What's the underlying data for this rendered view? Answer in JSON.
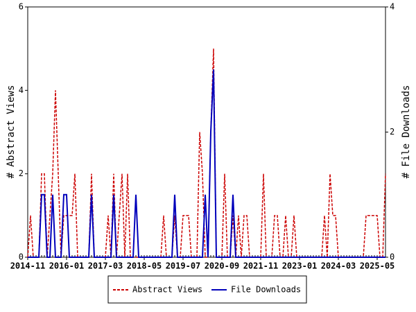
{
  "chart_data": {
    "type": "line",
    "ylabel": "# Abstract Views",
    "y2label": "# File Downloads",
    "x": [
      "2014-11",
      "2014-12",
      "2015-01",
      "2015-02",
      "2015-03",
      "2015-04",
      "2015-05",
      "2015-06",
      "2015-07",
      "2015-08",
      "2015-09",
      "2015-10",
      "2015-11",
      "2015-12",
      "2016-01",
      "2016-02",
      "2016-03",
      "2016-04",
      "2016-05",
      "2016-06",
      "2016-07",
      "2016-08",
      "2016-09",
      "2016-10",
      "2016-11",
      "2016-12",
      "2017-01",
      "2017-02",
      "2017-03",
      "2017-04",
      "2017-05",
      "2017-06",
      "2017-07",
      "2017-08",
      "2017-09",
      "2017-10",
      "2017-11",
      "2017-12",
      "2018-01",
      "2018-02",
      "2018-03",
      "2018-04",
      "2018-05",
      "2018-06",
      "2018-07",
      "2018-08",
      "2018-09",
      "2018-10",
      "2018-11",
      "2018-12",
      "2019-01",
      "2019-02",
      "2019-03",
      "2019-04",
      "2019-05",
      "2019-06",
      "2019-07",
      "2019-08",
      "2019-09",
      "2019-10",
      "2019-11",
      "2019-12",
      "2020-01",
      "2020-02",
      "2020-03",
      "2020-04",
      "2020-05",
      "2020-06",
      "2020-07",
      "2020-08",
      "2020-09",
      "2020-10",
      "2020-11",
      "2020-12",
      "2021-01",
      "2021-02",
      "2021-03",
      "2021-04",
      "2021-05",
      "2021-06",
      "2021-07",
      "2021-08",
      "2021-09",
      "2021-10",
      "2021-11",
      "2021-12",
      "2022-01",
      "2022-02",
      "2022-03",
      "2022-04",
      "2022-05",
      "2022-06",
      "2022-07",
      "2022-08",
      "2022-09",
      "2022-10",
      "2022-11",
      "2022-12",
      "2023-01",
      "2023-02",
      "2023-03",
      "2023-04",
      "2023-05",
      "2023-06",
      "2023-07",
      "2023-08",
      "2023-09",
      "2023-10",
      "2023-11",
      "2023-12",
      "2024-01",
      "2024-02",
      "2024-03",
      "2024-04",
      "2024-05",
      "2024-06",
      "2024-07",
      "2024-08",
      "2024-09",
      "2024-10",
      "2024-11",
      "2024-12",
      "2025-01",
      "2025-02",
      "2025-03",
      "2025-04",
      "2025-05",
      "2025-06",
      "2025-07",
      "2025-08"
    ],
    "xticks": [
      "2014-11",
      "2016-01",
      "2017-03",
      "2018-05",
      "2019-07",
      "2020-09",
      "2021-11",
      "2023-01",
      "2024-03",
      "2025-05"
    ],
    "series": [
      {
        "name": "Abstract Views",
        "color": "#cc0000",
        "dash": true,
        "values": [
          0,
          1,
          0,
          0,
          0,
          2,
          2,
          0,
          1,
          2,
          4,
          2,
          0,
          1,
          1,
          1,
          1,
          2,
          0,
          0,
          0,
          0,
          0,
          2,
          0,
          0,
          0,
          0,
          0,
          1,
          0,
          2,
          0,
          1,
          2,
          0,
          2,
          0,
          0,
          0,
          0,
          0,
          0,
          0,
          0,
          0,
          0,
          0,
          0,
          1,
          0,
          0,
          0,
          1,
          0,
          0,
          1,
          1,
          1,
          0,
          0,
          0,
          3,
          2,
          0,
          0,
          3,
          5,
          0,
          0,
          0,
          2,
          0,
          0,
          1,
          0,
          1,
          0,
          1,
          1,
          0,
          0,
          0,
          0,
          0,
          2,
          0,
          0,
          0,
          1,
          1,
          0,
          0,
          1,
          0,
          0,
          1,
          0,
          0,
          0,
          0,
          0,
          0,
          0,
          0,
          0,
          0,
          1,
          0,
          2,
          1,
          1,
          0,
          0,
          0,
          0,
          0,
          0,
          0,
          0,
          0,
          0,
          1,
          1,
          1,
          1,
          1,
          0,
          0,
          2
        ]
      },
      {
        "name": "File Downloads",
        "color": "#0000bb",
        "dash": false,
        "axis": "y2",
        "values": [
          0,
          0,
          0,
          0,
          0,
          1,
          1,
          0,
          0,
          1,
          0,
          0,
          0,
          1,
          1,
          0,
          0,
          0,
          0,
          0,
          0,
          0,
          0,
          1,
          0,
          0,
          0,
          0,
          0,
          0,
          0,
          1,
          0,
          0,
          0,
          0,
          0,
          0,
          0,
          1,
          0,
          0,
          0,
          0,
          0,
          0,
          0,
          0,
          0,
          0,
          0,
          0,
          0,
          1,
          0,
          0,
          0,
          0,
          0,
          0,
          0,
          0,
          0,
          0,
          1,
          0,
          2,
          3,
          0,
          0,
          0,
          0,
          0,
          0,
          1,
          0,
          0,
          0,
          0,
          0,
          0,
          0,
          0,
          0,
          0,
          0,
          0,
          0,
          0,
          0,
          0,
          0,
          0,
          0,
          0,
          0,
          0,
          0,
          0,
          0,
          0,
          0,
          0,
          0,
          0,
          0,
          0,
          0,
          0,
          0,
          0,
          0,
          0,
          0,
          0,
          0,
          0,
          0,
          0,
          0,
          0,
          0,
          0,
          0,
          0,
          0,
          0,
          0,
          0,
          0
        ]
      }
    ],
    "ylim": [
      0,
      6
    ],
    "yticks": [
      0,
      2,
      4,
      6
    ],
    "y2lim": [
      0,
      4
    ],
    "y2ticks": [
      0,
      2,
      4
    ]
  }
}
